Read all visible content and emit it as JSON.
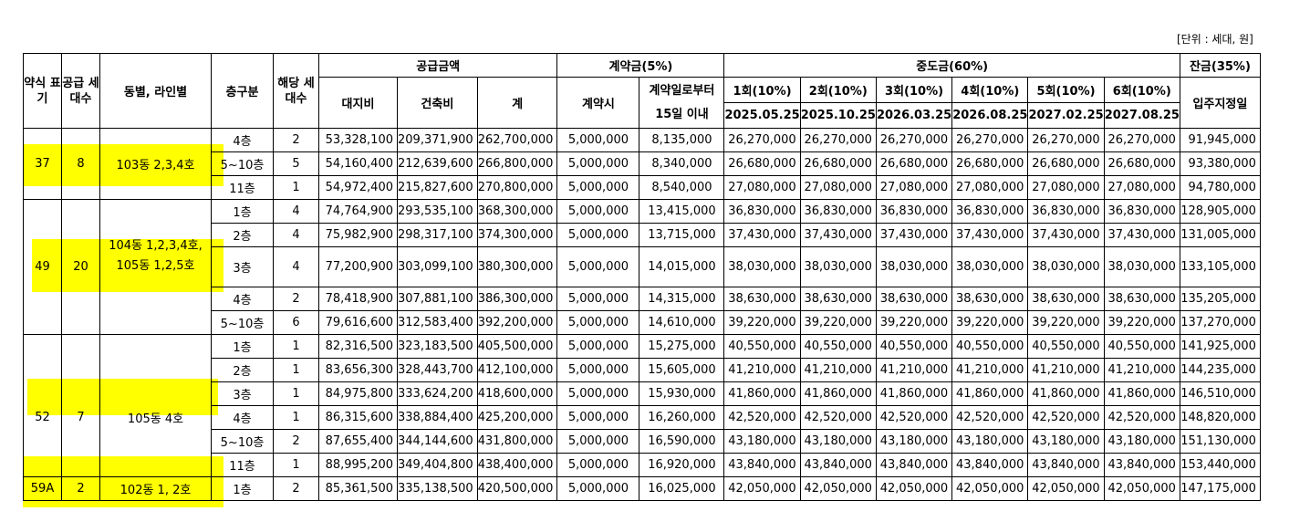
{
  "unit_note": "[단위 : 세대, 원]",
  "header": {
    "type": "약식\n표기",
    "supply_units": "공급\n세대수",
    "building_line": "동별, 라인별",
    "floor_class": "층구분",
    "units": "해당\n세대수",
    "supply_amount": "공급금액",
    "land": "대지비",
    "building": "건축비",
    "total": "계",
    "deposit_group": "계약금(5%)",
    "on_contract": "계약시",
    "within_15": "계약일로부터\n15일 이내",
    "middle_group": "중도금(60%)",
    "balance_group": "잔금(35%)",
    "move_in": "입주지정일",
    "installments": [
      {
        "label": "1회(10%)",
        "date": "2025.05.25"
      },
      {
        "label": "2회(10%)",
        "date": "2025.10.25"
      },
      {
        "label": "3회(10%)",
        "date": "2026.03.25"
      },
      {
        "label": "4회(10%)",
        "date": "2026.08.25"
      },
      {
        "label": "5회(10%)",
        "date": "2027.02.25"
      },
      {
        "label": "6회(10%)",
        "date": "2027.08.25"
      }
    ]
  },
  "groups": [
    {
      "type": "37",
      "supply": "8",
      "location": "103동 2,3,4호",
      "label_row": 1,
      "rows": [
        [
          "4층",
          "2",
          "53,328,100",
          "209,371,900",
          "262,700,000",
          "5,000,000",
          "8,135,000",
          "26,270,000",
          "26,270,000",
          "26,270,000",
          "26,270,000",
          "26,270,000",
          "26,270,000",
          "91,945,000"
        ],
        [
          "5~10층",
          "5",
          "54,160,400",
          "212,639,600",
          "266,800,000",
          "5,000,000",
          "8,340,000",
          "26,680,000",
          "26,680,000",
          "26,680,000",
          "26,680,000",
          "26,680,000",
          "26,680,000",
          "93,380,000"
        ],
        [
          "11층",
          "1",
          "54,972,400",
          "215,827,600",
          "270,800,000",
          "5,000,000",
          "8,540,000",
          "27,080,000",
          "27,080,000",
          "27,080,000",
          "27,080,000",
          "27,080,000",
          "27,080,000",
          "94,780,000"
        ]
      ]
    },
    {
      "type": "49",
      "supply": "20",
      "location": "104동 1,2,3,4호,\n105동 1,2,5호",
      "label_row": 2,
      "rows": [
        [
          "1층",
          "4",
          "74,764,900",
          "293,535,100",
          "368,300,000",
          "5,000,000",
          "13,415,000",
          "36,830,000",
          "36,830,000",
          "36,830,000",
          "36,830,000",
          "36,830,000",
          "36,830,000",
          "128,905,000"
        ],
        [
          "2층",
          "4",
          "75,982,900",
          "298,317,100",
          "374,300,000",
          "5,000,000",
          "13,715,000",
          "37,430,000",
          "37,430,000",
          "37,430,000",
          "37,430,000",
          "37,430,000",
          "37,430,000",
          "131,005,000"
        ],
        [
          "3층",
          "4",
          "77,200,900",
          "303,099,100",
          "380,300,000",
          "5,000,000",
          "14,015,000",
          "38,030,000",
          "38,030,000",
          "38,030,000",
          "38,030,000",
          "38,030,000",
          "38,030,000",
          "133,105,000"
        ],
        [
          "4층",
          "2",
          "78,418,900",
          "307,881,100",
          "386,300,000",
          "5,000,000",
          "14,315,000",
          "38,630,000",
          "38,630,000",
          "38,630,000",
          "38,630,000",
          "38,630,000",
          "38,630,000",
          "135,205,000"
        ],
        [
          "5~10층",
          "6",
          "79,616,600",
          "312,583,400",
          "392,200,000",
          "5,000,000",
          "14,610,000",
          "39,220,000",
          "39,220,000",
          "39,220,000",
          "39,220,000",
          "39,220,000",
          "39,220,000",
          "137,270,000"
        ]
      ]
    },
    {
      "type": "52",
      "supply": "7",
      "location": "105동 4호",
      "label_row": 3,
      "rows": [
        [
          "1층",
          "1",
          "82,316,500",
          "323,183,500",
          "405,500,000",
          "5,000,000",
          "15,275,000",
          "40,550,000",
          "40,550,000",
          "40,550,000",
          "40,550,000",
          "40,550,000",
          "40,550,000",
          "141,925,000"
        ],
        [
          "2층",
          "1",
          "83,656,300",
          "328,443,700",
          "412,100,000",
          "5,000,000",
          "15,605,000",
          "41,210,000",
          "41,210,000",
          "41,210,000",
          "41,210,000",
          "41,210,000",
          "41,210,000",
          "144,235,000"
        ],
        [
          "3층",
          "1",
          "84,975,800",
          "333,624,200",
          "418,600,000",
          "5,000,000",
          "15,930,000",
          "41,860,000",
          "41,860,000",
          "41,860,000",
          "41,860,000",
          "41,860,000",
          "41,860,000",
          "146,510,000"
        ],
        [
          "4층",
          "1",
          "86,315,600",
          "338,884,400",
          "425,200,000",
          "5,000,000",
          "16,260,000",
          "42,520,000",
          "42,520,000",
          "42,520,000",
          "42,520,000",
          "42,520,000",
          "42,520,000",
          "148,820,000"
        ],
        [
          "5~10층",
          "2",
          "87,655,400",
          "344,144,600",
          "431,800,000",
          "5,000,000",
          "16,590,000",
          "43,180,000",
          "43,180,000",
          "43,180,000",
          "43,180,000",
          "43,180,000",
          "43,180,000",
          "151,130,000"
        ],
        [
          "11층",
          "1",
          "88,995,200",
          "349,404,800",
          "438,400,000",
          "5,000,000",
          "16,920,000",
          "43,840,000",
          "43,840,000",
          "43,840,000",
          "43,840,000",
          "43,840,000",
          "43,840,000",
          "153,440,000"
        ]
      ]
    },
    {
      "type": "59A",
      "supply": "2",
      "location": "102동 1, 2호",
      "label_row": 0,
      "rows": [
        [
          "1층",
          "2",
          "85,361,500",
          "335,138,500",
          "420,500,000",
          "5,000,000",
          "16,025,000",
          "42,050,000",
          "42,050,000",
          "42,050,000",
          "42,050,000",
          "42,050,000",
          "42,050,000",
          "147,175,000"
        ]
      ]
    }
  ]
}
